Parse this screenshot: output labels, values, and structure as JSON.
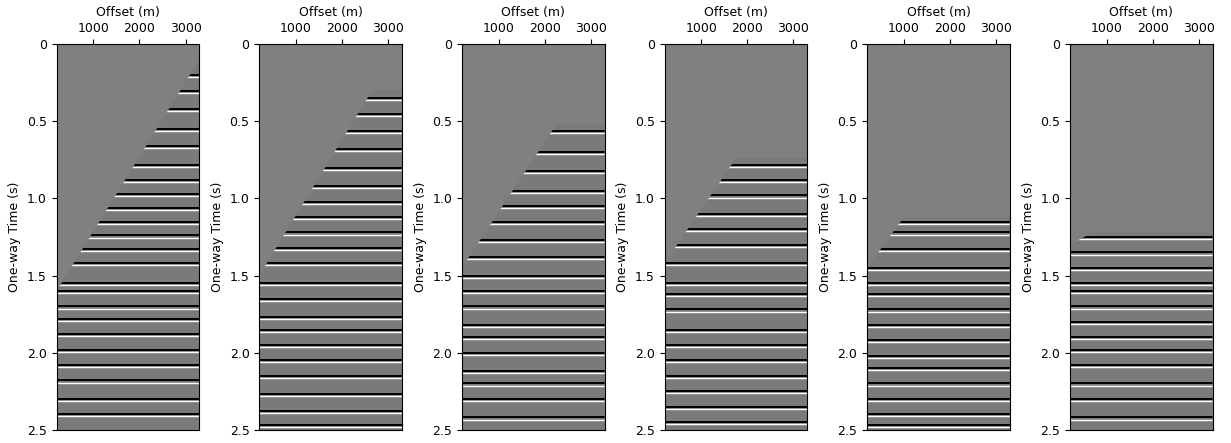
{
  "chart_data": [
    {
      "type": "seismic",
      "xlabel": "Offset (m)",
      "ylabel": "One-way Time (s)",
      "xlim": [
        200,
        3300
      ],
      "xticks": [
        1000,
        2000,
        3000
      ],
      "ylim": [
        2.5,
        0
      ],
      "yticks": [
        0,
        0.5,
        {
          "value": 1.0,
          "label": "1.0"
        },
        1.5,
        {
          "value": 2.0,
          "label": "2.0"
        },
        2.5
      ],
      "mute": {
        "offset": [
          200,
          3300
        ],
        "time": [
          1.6,
          0.1
        ]
      },
      "reflectors": [
        0.2,
        0.3,
        0.42,
        0.55,
        0.66,
        0.78,
        0.88,
        0.97,
        1.06,
        1.15,
        1.24,
        1.33,
        1.42,
        1.55,
        1.6,
        1.7,
        1.78,
        1.88,
        1.98,
        2.08,
        2.18,
        2.3,
        2.4
      ]
    },
    {
      "type": "seismic",
      "xlabel": "Offset (m)",
      "ylabel": "One-way Time (s)",
      "xlim": [
        200,
        3300
      ],
      "xticks": [
        1000,
        2000,
        3000
      ],
      "ylim": [
        2.5,
        0
      ],
      "yticks": [
        0,
        0.5,
        {
          "value": 1.0,
          "label": "1.0"
        },
        1.5,
        {
          "value": 2.0,
          "label": "2.0"
        },
        2.5
      ],
      "mute": {
        "offset": [
          200,
          2650,
          3300
        ],
        "time": [
          1.5,
          0.3,
          0.3
        ]
      },
      "reflectors": [
        0.35,
        0.45,
        0.56,
        0.68,
        0.8,
        0.92,
        1.02,
        1.12,
        1.22,
        1.32,
        1.42,
        1.55,
        1.65,
        1.77,
        1.85,
        1.95,
        2.05,
        2.15,
        2.27,
        2.38,
        2.47
      ]
    },
    {
      "type": "seismic",
      "xlabel": "Offset (m)",
      "ylabel": "One-way Time (s)",
      "xlim": [
        200,
        3300
      ],
      "xticks": [
        1000,
        2000,
        3000
      ],
      "ylim": [
        2.5,
        0
      ],
      "yticks": [
        0,
        0.5,
        {
          "value": 1.0,
          "label": "1.0"
        },
        1.5,
        {
          "value": 2.0,
          "label": "2.0"
        },
        2.5
      ],
      "mute": {
        "offset": [
          200,
          2250,
          3300
        ],
        "time": [
          1.45,
          0.52,
          0.52
        ]
      },
      "reflectors": [
        0.56,
        0.7,
        0.82,
        0.95,
        1.05,
        1.15,
        1.27,
        1.38,
        1.5,
        1.6,
        1.7,
        1.82,
        1.9,
        2.0,
        2.12,
        2.2,
        2.3,
        2.42
      ]
    },
    {
      "type": "seismic",
      "xlabel": "Offset (m)",
      "ylabel": "One-way Time (s)",
      "xlim": [
        200,
        3300
      ],
      "xticks": [
        1000,
        2000,
        3000
      ],
      "ylim": [
        2.5,
        0
      ],
      "yticks": [
        0,
        0.5,
        {
          "value": 1.0,
          "label": "1.0"
        },
        1.5,
        {
          "value": 2.0,
          "label": "2.0"
        },
        2.5
      ],
      "mute": {
        "offset": [
          200,
          1750,
          3300
        ],
        "time": [
          1.42,
          0.74,
          0.74
        ]
      },
      "reflectors": [
        0.78,
        0.88,
        0.98,
        1.1,
        1.2,
        1.3,
        1.42,
        1.55,
        1.62,
        1.72,
        1.85,
        1.95,
        2.05,
        2.15,
        2.25,
        2.35,
        2.45
      ]
    },
    {
      "type": "seismic",
      "xlabel": "Offset (m)",
      "ylabel": "One-way Time (s)",
      "xlim": [
        200,
        3300
      ],
      "xticks": [
        1000,
        2000,
        3000
      ],
      "ylim": [
        2.5,
        0
      ],
      "yticks": [
        0,
        0.5,
        {
          "value": 1.0,
          "label": "1.0"
        },
        1.5,
        {
          "value": 2.0,
          "label": "2.0"
        },
        2.5
      ],
      "mute": {
        "offset": [
          200,
          1000,
          3300
        ],
        "time": [
          1.45,
          1.12,
          1.12
        ]
      },
      "reflectors": [
        1.15,
        1.22,
        1.33,
        1.45,
        1.55,
        1.62,
        1.72,
        1.82,
        1.92,
        2.02,
        2.1,
        2.2,
        2.3,
        2.4,
        2.47
      ]
    },
    {
      "type": "seismic",
      "xlabel": "Offset (m)",
      "ylabel": "One-way Time (s)",
      "xlim": [
        200,
        3300
      ],
      "xticks": [
        1000,
        2000,
        3000
      ],
      "ylim": [
        2.5,
        0
      ],
      "yticks": [
        0,
        0.5,
        {
          "value": 1.0,
          "label": "1.0"
        },
        1.5,
        {
          "value": 2.0,
          "label": "2.0"
        },
        2.5
      ],
      "mute": {
        "offset": [
          200,
          700,
          3300
        ],
        "time": [
          1.3,
          1.22,
          1.22
        ]
      },
      "reflectors": [
        1.25,
        1.35,
        1.45,
        1.55,
        1.6,
        1.7,
        1.8,
        1.9,
        1.98,
        2.08,
        2.2,
        2.3,
        2.42
      ]
    }
  ]
}
